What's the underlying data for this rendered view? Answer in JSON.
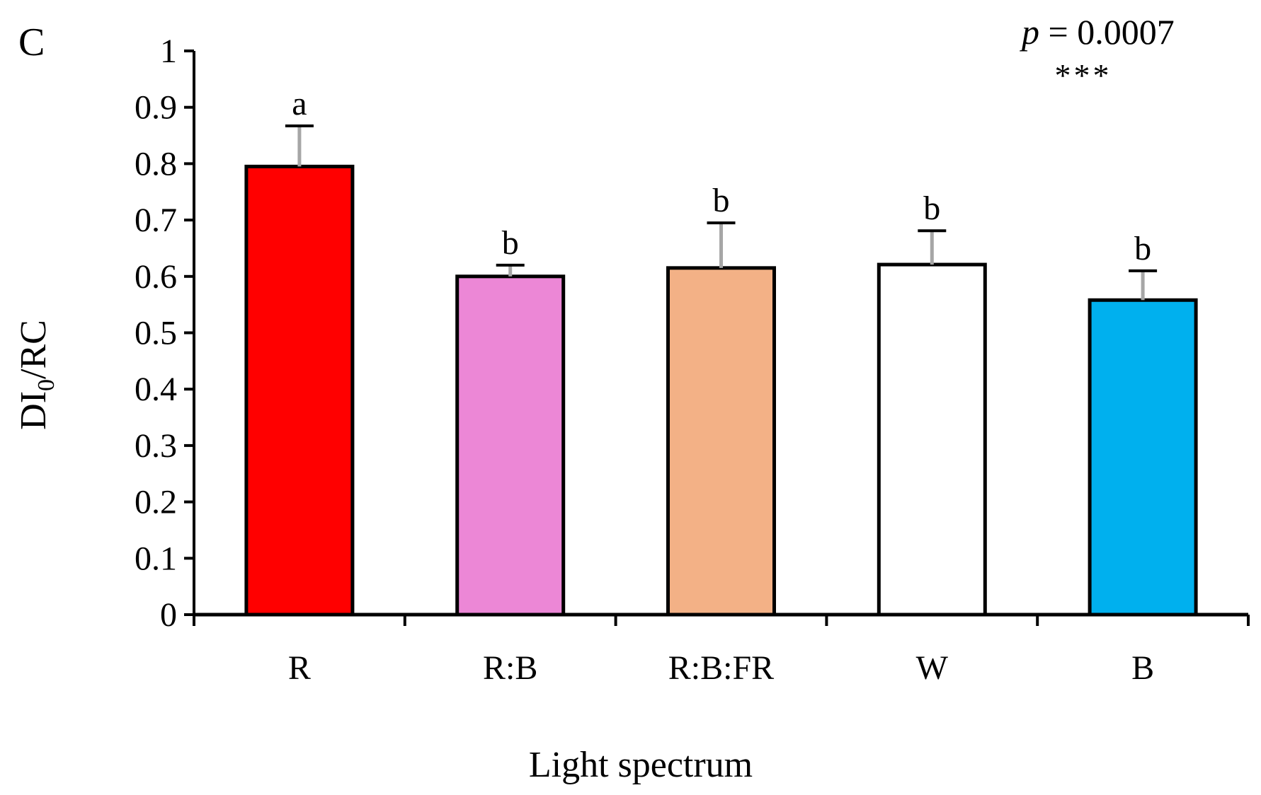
{
  "chart_data": {
    "type": "bar",
    "panel_label": "C",
    "categories": [
      "R",
      "R:B",
      "R:B:FR",
      "W",
      "B"
    ],
    "values": [
      0.795,
      0.6,
      0.615,
      0.621,
      0.558
    ],
    "errors": [
      0.072,
      0.02,
      0.08,
      0.06,
      0.052
    ],
    "significance_letters": [
      "a",
      "b",
      "b",
      "b",
      "b"
    ],
    "bar_colors": [
      "#ff0000",
      "#ec87d6",
      "#f3b186",
      "#ffffff",
      "#00b0ee"
    ],
    "xlabel": "Light spectrum",
    "ylabel_main": "DI",
    "ylabel_sub": "0",
    "ylabel_rest": "/RC",
    "ylim": [
      0,
      1
    ],
    "yticks": [
      "0",
      "0.1",
      "0.2",
      "0.3",
      "0.4",
      "0.5",
      "0.6",
      "0.7",
      "0.8",
      "0.9",
      "1"
    ],
    "annotation": {
      "p_symbol": "p",
      "p_rest": " = 0.0007",
      "stars": "***"
    },
    "grid": false,
    "legend": "none"
  }
}
